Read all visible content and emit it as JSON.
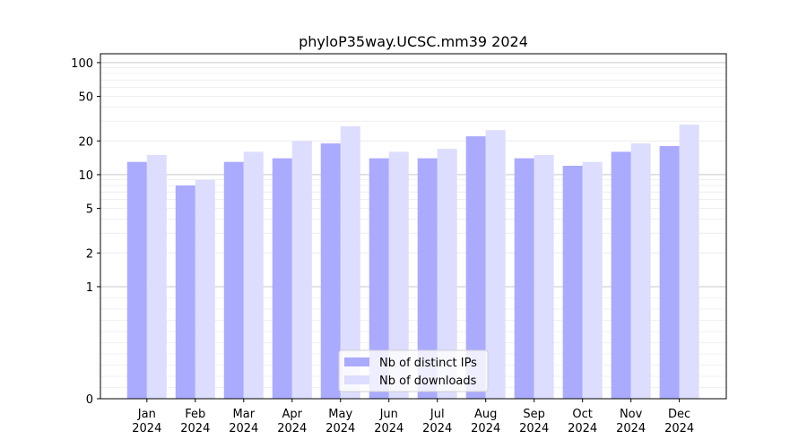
{
  "chart_data": {
    "type": "bar",
    "title": "phyloP35way.UCSC.mm39 2024",
    "xlabel": "",
    "ylabel": "",
    "yscale": "symlog",
    "ylim": [
      0,
      120
    ],
    "yticks": [
      0,
      1,
      2,
      5,
      10,
      20,
      50,
      100
    ],
    "grid": "horizontal",
    "legend_position": "bottom-center",
    "categories": [
      "Jan\n2024",
      "Feb\n2024",
      "Mar\n2024",
      "Apr\n2024",
      "May\n2024",
      "Jun\n2024",
      "Jul\n2024",
      "Aug\n2024",
      "Sep\n2024",
      "Oct\n2024",
      "Nov\n2024",
      "Dec\n2024"
    ],
    "series": [
      {
        "name": "Nb of distinct IPs",
        "color": "#aaaaff",
        "values": [
          13,
          8,
          13,
          14,
          19,
          14,
          14,
          22,
          14,
          12,
          16,
          18
        ]
      },
      {
        "name": "Nb of downloads",
        "color": "#ddddff",
        "values": [
          15,
          9,
          16,
          20,
          27,
          16,
          17,
          25,
          15,
          13,
          19,
          28
        ]
      }
    ]
  }
}
